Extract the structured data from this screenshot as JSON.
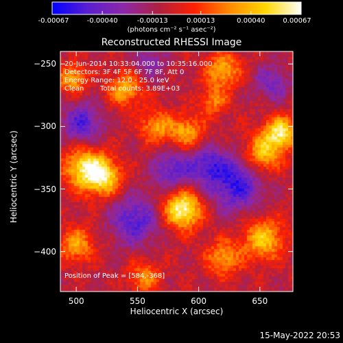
{
  "chart_data": {
    "type": "heatmap",
    "title": "Reconstructed RHESSI Image",
    "xlabel": "Heliocentric X (arcsec)",
    "ylabel": "Heliocentric Y (arcsec)",
    "xlim": [
      487,
      677
    ],
    "ylim": [
      -432,
      -240
    ],
    "x_ticks": [
      500,
      550,
      600,
      650
    ],
    "y_ticks": [
      -250,
      -300,
      -350,
      -400
    ],
    "colorbar": {
      "range": [
        -0.00067,
        0.00067
      ],
      "tick_values": [
        -0.00067,
        -0.0004,
        -0.00013,
        0.00013,
        0.0004,
        0.00067
      ],
      "tick_labels": [
        "-0.00067",
        "-0.00040",
        "-0.00013",
        "0.00013",
        "0.00040",
        "0.00067"
      ],
      "units_label": "(photons cm⁻² s⁻¹ asec⁻²)",
      "colormap": [
        "#0000ff",
        "#5a1fd0",
        "#8c28a8",
        "#b02040",
        "#ff2000",
        "#ff8c00",
        "#ffd800",
        "#ffffff"
      ]
    },
    "annotations": {
      "time_range": "20-Jun-2014 10:33:04.000 to 10:35:16.000",
      "detectors": "Detectors: 3F 4F 5F 6F 7F 8F, Att 0",
      "energy_range": "Energy Range: 12.0 - 25.0 keV",
      "clean_label": "Clean",
      "total_counts": "Total counts: 3.89E+03",
      "peak_position": "Position of Peak = [584,-368]"
    },
    "peak": [
      584,
      -368
    ],
    "sources": [
      {
        "x": 587,
        "y": -366,
        "amp": 1.0,
        "sigma": 11
      },
      {
        "x": 507,
        "y": -333,
        "amp": 0.82,
        "sigma": 12
      },
      {
        "x": 523,
        "y": -341,
        "amp": 0.75,
        "sigma": 10
      },
      {
        "x": 667,
        "y": -305,
        "amp": 0.85,
        "sigma": 9
      },
      {
        "x": 652,
        "y": -322,
        "amp": 0.7,
        "sigma": 11
      },
      {
        "x": 540,
        "y": -270,
        "amp": 0.6,
        "sigma": 10
      },
      {
        "x": 565,
        "y": -300,
        "amp": 0.55,
        "sigma": 9
      },
      {
        "x": 590,
        "y": -305,
        "amp": 0.58,
        "sigma": 10
      },
      {
        "x": 620,
        "y": -255,
        "amp": 0.62,
        "sigma": 10
      },
      {
        "x": 653,
        "y": -390,
        "amp": 0.68,
        "sigma": 12
      },
      {
        "x": 500,
        "y": -395,
        "amp": 0.55,
        "sigma": 10
      },
      {
        "x": 620,
        "y": -405,
        "amp": 0.55,
        "sigma": 10
      },
      {
        "x": 497,
        "y": -262,
        "amp": 0.6,
        "sigma": 8
      },
      {
        "x": 556,
        "y": -420,
        "amp": 0.5,
        "sigma": 9
      },
      {
        "x": 612,
        "y": -280,
        "amp": 0.45,
        "sigma": 8
      },
      {
        "x": 548,
        "y": -375,
        "amp": -0.55,
        "sigma": 14
      },
      {
        "x": 630,
        "y": -345,
        "amp": -0.65,
        "sigma": 16
      },
      {
        "x": 505,
        "y": -298,
        "amp": -0.55,
        "sigma": 12
      },
      {
        "x": 580,
        "y": -335,
        "amp": -0.5,
        "sigma": 12
      },
      {
        "x": 660,
        "y": -265,
        "amp": -0.4,
        "sigma": 10
      },
      {
        "x": 560,
        "y": -248,
        "amp": -0.35,
        "sigma": 9
      },
      {
        "x": 607,
        "y": -330,
        "amp": -0.45,
        "sigma": 10
      }
    ]
  },
  "footer": {
    "date": "15-May-2022 20:53"
  }
}
